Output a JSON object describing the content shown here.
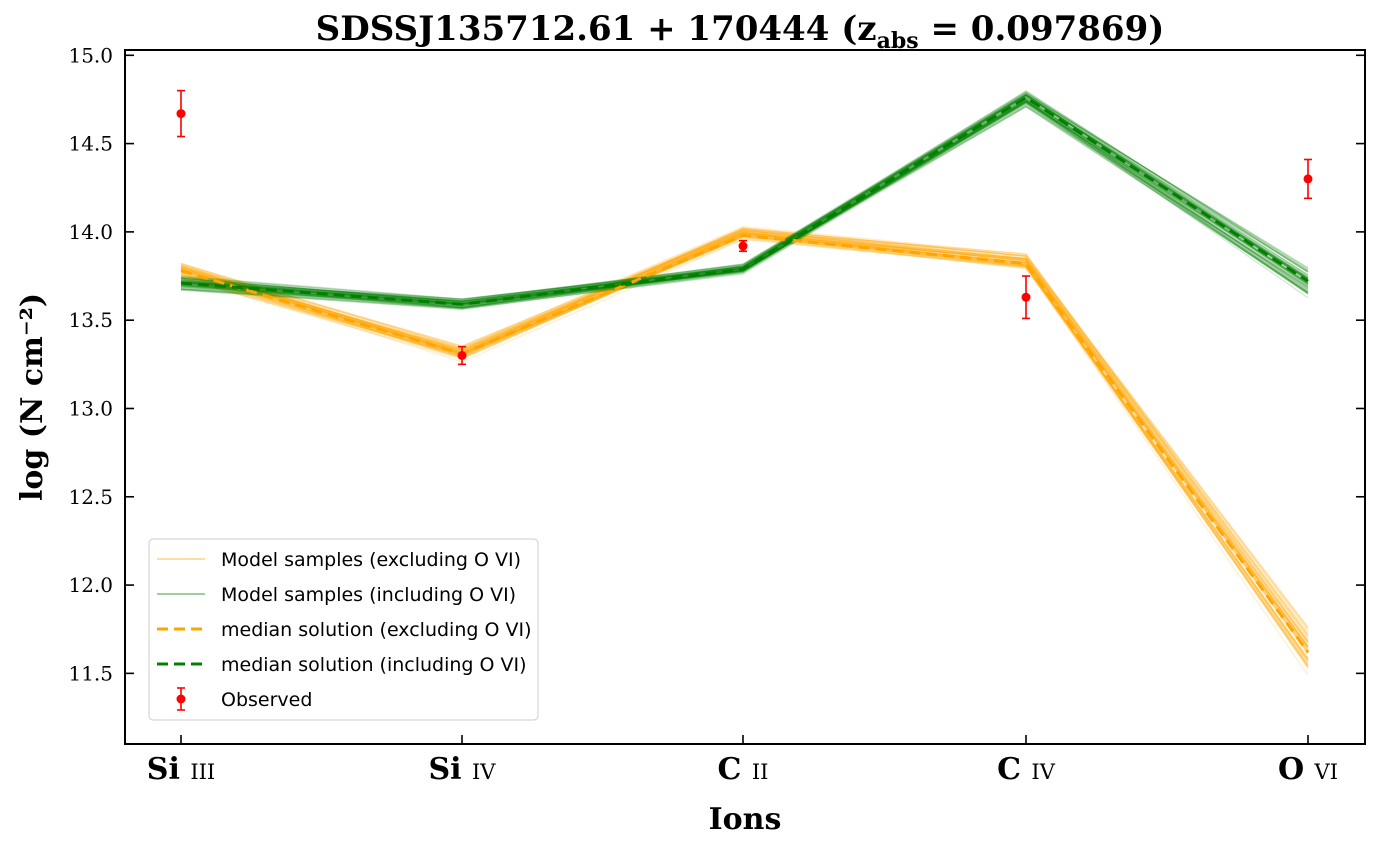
{
  "chart_data": {
    "type": "line",
    "title": "SDSSJ135712.61 + 170444 (z_abs = 0.097869)",
    "title_parts": {
      "main": "SDSSJ135712.61 + 170444 (z",
      "subscript": "abs",
      "tail": " = 0.097869)"
    },
    "xlabel": "Ions",
    "ylabel": "log (N cm⁻²)",
    "categories": [
      "Si III",
      "Si IV",
      "C II",
      "C IV",
      "O VI"
    ],
    "category_parts": [
      {
        "main": "Si",
        "roman": "III"
      },
      {
        "main": "Si",
        "roman": "IV"
      },
      {
        "main": "C",
        "roman": "II"
      },
      {
        "main": "C",
        "roman": "IV"
      },
      {
        "main": "O",
        "roman": "VI"
      }
    ],
    "ylim": [
      11.1,
      15.03
    ],
    "yticks": [
      "11.5",
      "12.0",
      "12.5",
      "13.0",
      "13.5",
      "14.0",
      "14.5",
      "15.0"
    ],
    "grid": false,
    "legend_position": "lower-left",
    "series": [
      {
        "name": "Model samples (excluding O VI)",
        "kind": "samples",
        "color": "#ffa500",
        "values": [
          13.78,
          13.31,
          13.99,
          13.83,
          11.62
        ],
        "spread": [
          0.05,
          0.05,
          0.04,
          0.05,
          0.14
        ]
      },
      {
        "name": "Model samples (including O VI)",
        "kind": "samples",
        "color": "#008000",
        "values": [
          13.71,
          13.59,
          13.79,
          14.75,
          13.71
        ],
        "spread": [
          0.04,
          0.03,
          0.03,
          0.05,
          0.09
        ]
      },
      {
        "name": "median solution (excluding O VI)",
        "kind": "median",
        "color": "#ffa500",
        "values": [
          13.78,
          13.31,
          13.98,
          13.82,
          11.62
        ]
      },
      {
        "name": "median solution (including O VI)",
        "kind": "median",
        "color": "#008000",
        "values": [
          13.71,
          13.59,
          13.79,
          14.76,
          13.72
        ]
      },
      {
        "name": "Observed",
        "kind": "errorbar",
        "color": "#ff0000",
        "values": [
          14.67,
          13.3,
          13.92,
          13.63,
          14.3
        ],
        "errors": [
          0.13,
          0.05,
          0.03,
          0.12,
          0.11
        ]
      }
    ]
  }
}
